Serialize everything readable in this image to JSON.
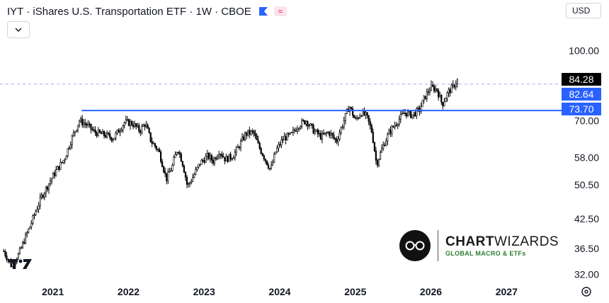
{
  "header": {
    "title": "IYT · iShares U.S. Transportation ETF · 1W · CBOE",
    "flag_icon": "flag-icon",
    "wave_icon": "≈",
    "collapse_icon": "chevron-down-icon"
  },
  "currency": {
    "label": "USD"
  },
  "price_tags": {
    "last": "84.28",
    "mid": "82.64",
    "line": "73.70"
  },
  "colors": {
    "candles": "#000000",
    "support_line": "#2962ff",
    "last_price_dash": "#9fb3d9",
    "tag_last_bg": "#000000",
    "tag_blue_bg": "#2962ff",
    "brand_green": "#2e7d32"
  },
  "watermark": {
    "brand_bold": "CHART",
    "brand_light": "WIZARDS",
    "tagline": "GLOBAL MACRO & ETFs",
    "tv_logo": "17"
  },
  "chart_data": {
    "type": "candlestick",
    "interval": "1W",
    "y_scale": "log",
    "ylim": [
      31.5,
      112
    ],
    "x_range": [
      2020.3,
      2027.7
    ],
    "y_ticks": [
      "100.00",
      "70.00",
      "58.00",
      "50.50",
      "42.50",
      "36.50",
      "32.00"
    ],
    "x_ticks": [
      "2021",
      "2022",
      "2023",
      "2024",
      "2025",
      "2026",
      "2027"
    ],
    "last_price": 84.28,
    "horizontal_line": {
      "value": 73.7,
      "x_start": 2021.38
    },
    "price_path": [
      [
        2020.35,
        36.0
      ],
      [
        2020.45,
        33.5
      ],
      [
        2020.55,
        35.5
      ],
      [
        2020.7,
        41.0
      ],
      [
        2020.85,
        47.5
      ],
      [
        2020.95,
        51.0
      ],
      [
        2021.05,
        54.5
      ],
      [
        2021.15,
        57.5
      ],
      [
        2021.25,
        64.0
      ],
      [
        2021.35,
        70.0
      ],
      [
        2021.45,
        68.5
      ],
      [
        2021.55,
        66.0
      ],
      [
        2021.7,
        65.0
      ],
      [
        2021.8,
        64.0
      ],
      [
        2021.95,
        69.5
      ],
      [
        2022.05,
        69.0
      ],
      [
        2022.15,
        66.5
      ],
      [
        2022.22,
        69.0
      ],
      [
        2022.3,
        63.0
      ],
      [
        2022.4,
        60.0
      ],
      [
        2022.45,
        56.0
      ],
      [
        2022.5,
        52.0
      ],
      [
        2022.58,
        55.5
      ],
      [
        2022.65,
        61.0
      ],
      [
        2022.72,
        56.0
      ],
      [
        2022.78,
        50.0
      ],
      [
        2022.85,
        52.5
      ],
      [
        2022.95,
        56.5
      ],
      [
        2023.05,
        58.5
      ],
      [
        2023.12,
        57.0
      ],
      [
        2023.2,
        60.0
      ],
      [
        2023.28,
        57.5
      ],
      [
        2023.38,
        58.5
      ],
      [
        2023.45,
        61.0
      ],
      [
        2023.55,
        65.5
      ],
      [
        2023.65,
        66.0
      ],
      [
        2023.72,
        61.5
      ],
      [
        2023.82,
        57.0
      ],
      [
        2023.88,
        54.5
      ],
      [
        2023.95,
        60.0
      ],
      [
        2024.05,
        64.0
      ],
      [
        2024.15,
        65.0
      ],
      [
        2024.25,
        68.5
      ],
      [
        2024.35,
        70.0
      ],
      [
        2024.45,
        66.5
      ],
      [
        2024.55,
        64.5
      ],
      [
        2024.65,
        66.0
      ],
      [
        2024.75,
        63.0
      ],
      [
        2024.85,
        70.0
      ],
      [
        2024.92,
        75.5
      ],
      [
        2025.0,
        70.0
      ],
      [
        2025.08,
        73.0
      ],
      [
        2025.15,
        71.5
      ],
      [
        2025.22,
        66.0
      ],
      [
        2025.28,
        56.0
      ],
      [
        2025.35,
        60.5
      ],
      [
        2025.45,
        66.0
      ],
      [
        2025.55,
        69.5
      ],
      [
        2025.65,
        73.0
      ],
      [
        2025.75,
        72.0
      ],
      [
        2025.85,
        74.0
      ],
      [
        2025.92,
        79.0
      ],
      [
        2026.0,
        83.0
      ],
      [
        2026.08,
        82.0
      ],
      [
        2026.15,
        76.0
      ],
      [
        2026.22,
        80.5
      ],
      [
        2026.3,
        83.5
      ],
      [
        2026.35,
        86.0
      ]
    ]
  }
}
